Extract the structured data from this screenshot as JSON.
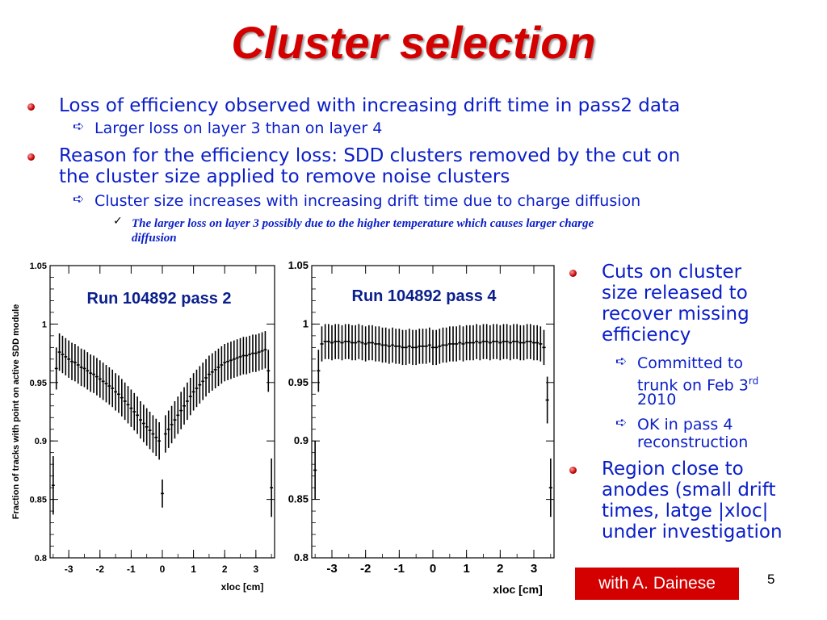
{
  "slide": {
    "title": "Cluster selection",
    "page_number": "5",
    "credit": "with A. Dainese"
  },
  "bullets": [
    {
      "text": "Loss of efficiency observed with increasing drift time in pass2 data"
    },
    {
      "sub": "Larger loss on layer 3 than on layer 4"
    },
    {
      "text_line1": "Reason for the efficiency loss: SDD clusters removed by the cut on",
      "text_line2": "the cluster size applied to remove noise clusters"
    },
    {
      "sub": "Cluster size increases with increasing drift time due to charge diffusion"
    },
    {
      "subsub_line1": "The larger loss on layer 3 possibly due to the higher temperature which causes larger charge",
      "subsub_line2": "diffusion"
    }
  ],
  "side": {
    "cuts_lines": [
      "Cuts on cluster",
      "size released to",
      "recover missing",
      "efficiency"
    ],
    "committed_lines": [
      "Committed to",
      "trunk on Feb 3",
      "2010"
    ],
    "committed_sup": "rd",
    "ok_lines": [
      "OK in pass 4",
      "reconstruction"
    ],
    "region_lines": [
      "Region close to",
      "anodes (small drift",
      "times, latge |xloc|",
      "under investigation"
    ]
  },
  "colors": {
    "title": "#d40000",
    "text": "#0a1ec8",
    "bullet": "#c00000",
    "credit_bg": "#d40000"
  },
  "icons": [
    "bullet-dot-icon",
    "arrow-right-icon",
    "checkmark-icon"
  ],
  "chart_data": [
    {
      "type": "scatter",
      "title": "Run 104892 pass 2",
      "xlabel": "xloc [cm]",
      "ylabel": "Fraction of tracks with point on active SDD module",
      "xlim": [
        -3.6,
        3.6
      ],
      "ylim": [
        0.8,
        1.05
      ],
      "xticks": [
        "-3",
        "-2",
        "-1",
        "0",
        "1",
        "2",
        "3"
      ],
      "yticks": [
        "0.8",
        "0.85",
        "0.9",
        "0.95",
        "1",
        "1.05"
      ],
      "x": [
        -3.5,
        -3.4,
        -3.3,
        -3.2,
        -3.1,
        -3.0,
        -2.9,
        -2.8,
        -2.7,
        -2.6,
        -2.5,
        -2.4,
        -2.3,
        -2.2,
        -2.1,
        -2.0,
        -1.9,
        -1.8,
        -1.7,
        -1.6,
        -1.5,
        -1.4,
        -1.3,
        -1.2,
        -1.1,
        -1.0,
        -0.9,
        -0.8,
        -0.7,
        -0.6,
        -0.5,
        -0.4,
        -0.3,
        -0.2,
        -0.1,
        0.0,
        0.1,
        0.2,
        0.3,
        0.4,
        0.5,
        0.6,
        0.7,
        0.8,
        0.9,
        1.0,
        1.1,
        1.2,
        1.3,
        1.4,
        1.5,
        1.6,
        1.7,
        1.8,
        1.9,
        2.0,
        2.1,
        2.2,
        2.3,
        2.4,
        2.5,
        2.6,
        2.7,
        2.8,
        2.9,
        3.0,
        3.1,
        3.2,
        3.3,
        3.4,
        3.5
      ],
      "y": [
        0.862,
        0.962,
        0.976,
        0.974,
        0.972,
        0.97,
        0.968,
        0.967,
        0.965,
        0.963,
        0.962,
        0.96,
        0.958,
        0.957,
        0.955,
        0.953,
        0.951,
        0.949,
        0.947,
        0.945,
        0.942,
        0.94,
        0.937,
        0.934,
        0.931,
        0.928,
        0.925,
        0.922,
        0.918,
        0.915,
        0.912,
        0.909,
        0.906,
        0.903,
        0.9,
        0.855,
        0.906,
        0.91,
        0.914,
        0.918,
        0.922,
        0.926,
        0.93,
        0.934,
        0.938,
        0.942,
        0.945,
        0.948,
        0.951,
        0.954,
        0.957,
        0.959,
        0.961,
        0.963,
        0.965,
        0.967,
        0.968,
        0.969,
        0.97,
        0.971,
        0.972,
        0.973,
        0.973,
        0.974,
        0.975,
        0.975,
        0.976,
        0.977,
        0.978,
        0.96,
        0.86
      ],
      "err": [
        0.025,
        0.018,
        0.016,
        0.016,
        0.016,
        0.016,
        0.016,
        0.016,
        0.016,
        0.016,
        0.016,
        0.016,
        0.016,
        0.016,
        0.016,
        0.016,
        0.016,
        0.016,
        0.016,
        0.016,
        0.016,
        0.016,
        0.016,
        0.016,
        0.016,
        0.016,
        0.016,
        0.016,
        0.016,
        0.016,
        0.016,
        0.016,
        0.016,
        0.016,
        0.016,
        0.012,
        0.016,
        0.016,
        0.016,
        0.016,
        0.016,
        0.016,
        0.016,
        0.016,
        0.016,
        0.016,
        0.016,
        0.016,
        0.016,
        0.016,
        0.016,
        0.016,
        0.016,
        0.016,
        0.016,
        0.016,
        0.016,
        0.016,
        0.016,
        0.016,
        0.016,
        0.016,
        0.016,
        0.016,
        0.016,
        0.016,
        0.016,
        0.016,
        0.016,
        0.018,
        0.025
      ]
    },
    {
      "type": "scatter",
      "title": "Run 104892 pass 4",
      "xlabel": "xloc [cm]",
      "ylabel": "",
      "xlim": [
        -3.6,
        3.6
      ],
      "ylim": [
        0.8,
        1.05
      ],
      "xticks": [
        "-3",
        "-2",
        "-1",
        "0",
        "1",
        "2",
        "3"
      ],
      "yticks": [
        "0.8",
        "0.85",
        "0.9",
        "0.95",
        "1",
        "1.05"
      ],
      "x": [
        -3.5,
        -3.4,
        -3.3,
        -3.2,
        -3.1,
        -3.0,
        -2.9,
        -2.8,
        -2.7,
        -2.6,
        -2.5,
        -2.4,
        -2.3,
        -2.2,
        -2.1,
        -2.0,
        -1.9,
        -1.8,
        -1.7,
        -1.6,
        -1.5,
        -1.4,
        -1.3,
        -1.2,
        -1.1,
        -1.0,
        -0.9,
        -0.8,
        -0.7,
        -0.6,
        -0.5,
        -0.4,
        -0.3,
        -0.2,
        -0.1,
        0.0,
        0.1,
        0.2,
        0.3,
        0.4,
        0.5,
        0.6,
        0.7,
        0.8,
        0.9,
        1.0,
        1.1,
        1.2,
        1.3,
        1.4,
        1.5,
        1.6,
        1.7,
        1.8,
        1.9,
        2.0,
        2.1,
        2.2,
        2.3,
        2.4,
        2.5,
        2.6,
        2.7,
        2.8,
        2.9,
        3.0,
        3.1,
        3.2,
        3.3,
        3.4,
        3.5
      ],
      "y": [
        0.875,
        0.96,
        0.983,
        0.985,
        0.985,
        0.984,
        0.985,
        0.985,
        0.984,
        0.985,
        0.985,
        0.984,
        0.984,
        0.985,
        0.984,
        0.983,
        0.984,
        0.984,
        0.983,
        0.983,
        0.982,
        0.982,
        0.981,
        0.982,
        0.981,
        0.981,
        0.98,
        0.98,
        0.981,
        0.98,
        0.98,
        0.981,
        0.981,
        0.981,
        0.982,
        0.98,
        0.98,
        0.981,
        0.982,
        0.982,
        0.983,
        0.983,
        0.983,
        0.984,
        0.983,
        0.984,
        0.984,
        0.984,
        0.985,
        0.984,
        0.985,
        0.985,
        0.984,
        0.985,
        0.985,
        0.984,
        0.985,
        0.985,
        0.984,
        0.985,
        0.985,
        0.984,
        0.984,
        0.985,
        0.985,
        0.984,
        0.984,
        0.983,
        0.98,
        0.935,
        0.86
      ],
      "err": [
        0.025,
        0.018,
        0.015,
        0.015,
        0.015,
        0.015,
        0.015,
        0.015,
        0.015,
        0.015,
        0.015,
        0.015,
        0.015,
        0.015,
        0.015,
        0.015,
        0.015,
        0.015,
        0.015,
        0.015,
        0.015,
        0.015,
        0.015,
        0.015,
        0.015,
        0.015,
        0.015,
        0.015,
        0.015,
        0.015,
        0.015,
        0.015,
        0.015,
        0.015,
        0.015,
        0.015,
        0.015,
        0.015,
        0.015,
        0.015,
        0.015,
        0.015,
        0.015,
        0.015,
        0.015,
        0.015,
        0.015,
        0.015,
        0.015,
        0.015,
        0.015,
        0.015,
        0.015,
        0.015,
        0.015,
        0.015,
        0.015,
        0.015,
        0.015,
        0.015,
        0.015,
        0.015,
        0.015,
        0.015,
        0.015,
        0.015,
        0.015,
        0.015,
        0.015,
        0.02,
        0.025
      ]
    }
  ]
}
